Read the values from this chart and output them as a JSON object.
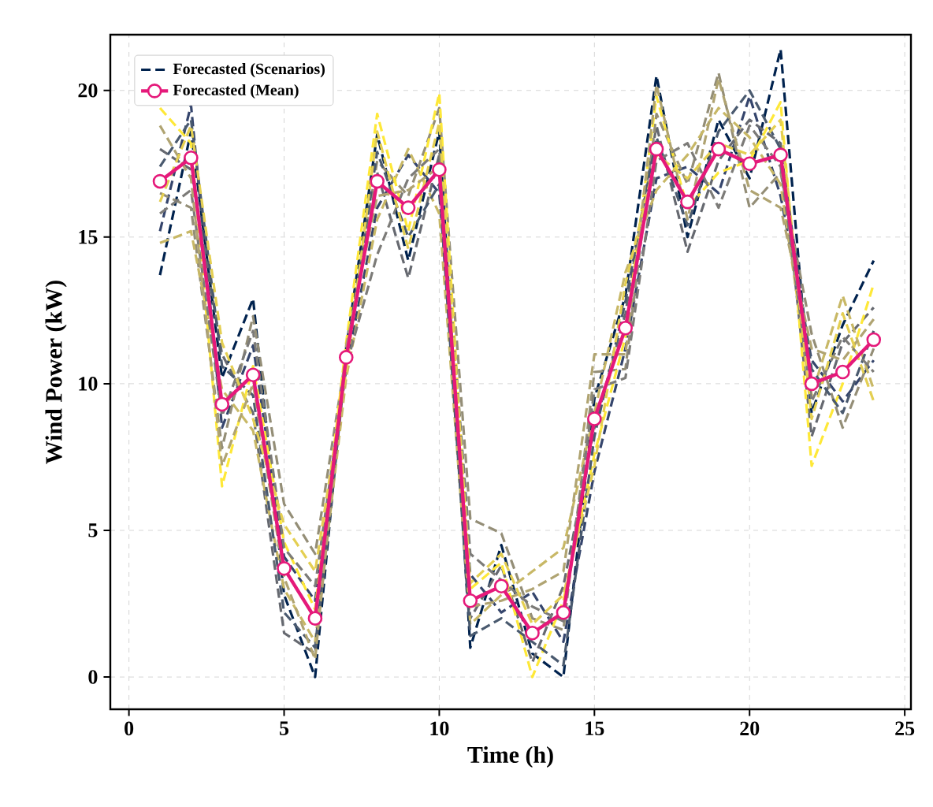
{
  "chart_data": {
    "type": "line",
    "xlabel": "Time (h)",
    "ylabel": "Wind Power (kW)",
    "x": [
      1,
      2,
      3,
      4,
      5,
      6,
      7,
      8,
      9,
      10,
      11,
      12,
      13,
      14,
      15,
      16,
      17,
      18,
      19,
      20,
      21,
      22,
      23,
      24
    ],
    "xlim": [
      -0.6,
      25.2
    ],
    "ylim": [
      -1.1,
      21.9
    ],
    "xticks": [
      0,
      5,
      10,
      15,
      20,
      25
    ],
    "yticks": [
      0,
      5,
      10,
      15,
      20
    ],
    "grid": true,
    "legend": "top left",
    "series": [
      {
        "name": "Forecasted (Scenarios)",
        "color": "#00224e",
        "line_style": "dashed",
        "marker": "none",
        "values": [
          13.7,
          18.6,
          10.2,
          12.9,
          2.8,
          0.0,
          11.2,
          18.5,
          14.2,
          18.6,
          1.0,
          4.5,
          0.8,
          0.0,
          9.5,
          13.0,
          20.5,
          15.0,
          19.0,
          17.0,
          21.4,
          9.0,
          12.0,
          14.2
        ]
      },
      {
        "color": "#35456c",
        "line_style": "dashed",
        "marker": "none",
        "values": [
          15.2,
          19.5,
          8.5,
          11.3,
          4.1,
          2.6,
          10.5,
          16.0,
          17.8,
          16.5,
          3.5,
          2.2,
          2.9,
          1.2,
          7.0,
          11.2,
          17.0,
          17.4,
          16.5,
          19.8,
          16.4,
          10.8,
          9.4,
          10.8
        ]
      },
      {
        "color": "#666970",
        "line_style": "dashed",
        "marker": "none",
        "values": [
          18.0,
          17.3,
          11.0,
          9.0,
          1.5,
          0.8,
          10.8,
          17.2,
          13.6,
          17.8,
          2.0,
          3.8,
          0.5,
          3.1,
          8.5,
          12.4,
          18.8,
          14.5,
          17.6,
          19.0,
          18.2,
          8.2,
          11.4,
          12.6
        ]
      },
      {
        "color": "#948e77",
        "line_style": "dashed",
        "marker": "none",
        "values": [
          16.5,
          16.0,
          7.8,
          12.3,
          5.9,
          4.2,
          11.0,
          17.6,
          16.4,
          19.4,
          5.4,
          4.9,
          2.0,
          1.6,
          10.4,
          10.5,
          19.2,
          16.8,
          20.6,
          16.0,
          17.2,
          11.7,
          8.5,
          11.2
        ]
      },
      {
        "color": "#c8b866",
        "line_style": "dashed",
        "marker": "none",
        "values": [
          14.8,
          15.2,
          9.8,
          8.4,
          3.0,
          1.2,
          10.2,
          15.6,
          18.0,
          15.8,
          1.8,
          2.8,
          3.6,
          4.4,
          9.0,
          13.8,
          16.6,
          17.8,
          19.4,
          18.4,
          16.8,
          9.6,
          13.0,
          9.8
        ]
      },
      {
        "color": "#fee838",
        "line_style": "dashed",
        "marker": "none",
        "values": [
          19.4,
          18.2,
          6.5,
          10.6,
          4.6,
          2.3,
          11.4,
          19.2,
          15.2,
          19.9,
          3.0,
          3.9,
          0.0,
          2.6,
          7.6,
          11.6,
          19.8,
          16.0,
          17.2,
          17.6,
          19.6,
          7.2,
          10.0,
          13.4
        ]
      },
      {
        "color": "#4a5a6f",
        "line_style": "dashed",
        "marker": "none",
        "values": [
          17.4,
          19.0,
          10.6,
          9.6,
          2.2,
          1.0,
          10.9,
          17.9,
          15.0,
          16.8,
          1.4,
          2.0,
          1.2,
          0.4,
          8.2,
          12.8,
          18.4,
          15.4,
          18.6,
          20.0,
          18.0,
          10.5,
          9.0,
          11.8
        ]
      },
      {
        "color": "#7c7b78",
        "line_style": "dashed",
        "marker": "none",
        "values": [
          15.8,
          16.6,
          8.9,
          11.8,
          4.4,
          3.1,
          10.6,
          14.4,
          17.0,
          18.0,
          4.2,
          3.3,
          2.4,
          1.9,
          9.8,
          10.2,
          17.6,
          18.2,
          16.0,
          18.8,
          17.4,
          9.4,
          11.6,
          10.4
        ]
      },
      {
        "color": "#b0a472",
        "line_style": "dashed",
        "marker": "none",
        "values": [
          18.8,
          17.0,
          7.2,
          10.0,
          3.4,
          0.6,
          11.3,
          16.4,
          16.6,
          17.4,
          2.4,
          2.6,
          3.0,
          3.6,
          11.0,
          11.0,
          20.2,
          15.6,
          20.4,
          16.6,
          16.0,
          11.2,
          10.8,
          12.2
        ]
      },
      {
        "color": "#e4cf52",
        "line_style": "dashed",
        "marker": "none",
        "values": [
          16.2,
          18.8,
          11.4,
          8.8,
          5.2,
          3.6,
          10.4,
          18.6,
          14.6,
          18.9,
          3.2,
          4.2,
          1.8,
          2.8,
          7.2,
          13.4,
          17.8,
          17.0,
          18.2,
          17.8,
          19.0,
          8.8,
          12.4,
          9.4
        ]
      },
      {
        "name": "Forecasted (Mean)",
        "color": "#e5197a",
        "line_style": "solid",
        "marker": "circle",
        "values": [
          16.9,
          17.7,
          9.3,
          10.3,
          3.7,
          2.0,
          10.9,
          16.9,
          16.0,
          17.3,
          2.6,
          3.1,
          1.5,
          2.2,
          8.8,
          11.9,
          18.0,
          16.2,
          18.0,
          17.5,
          17.8,
          10.0,
          10.4,
          11.5
        ]
      }
    ]
  }
}
